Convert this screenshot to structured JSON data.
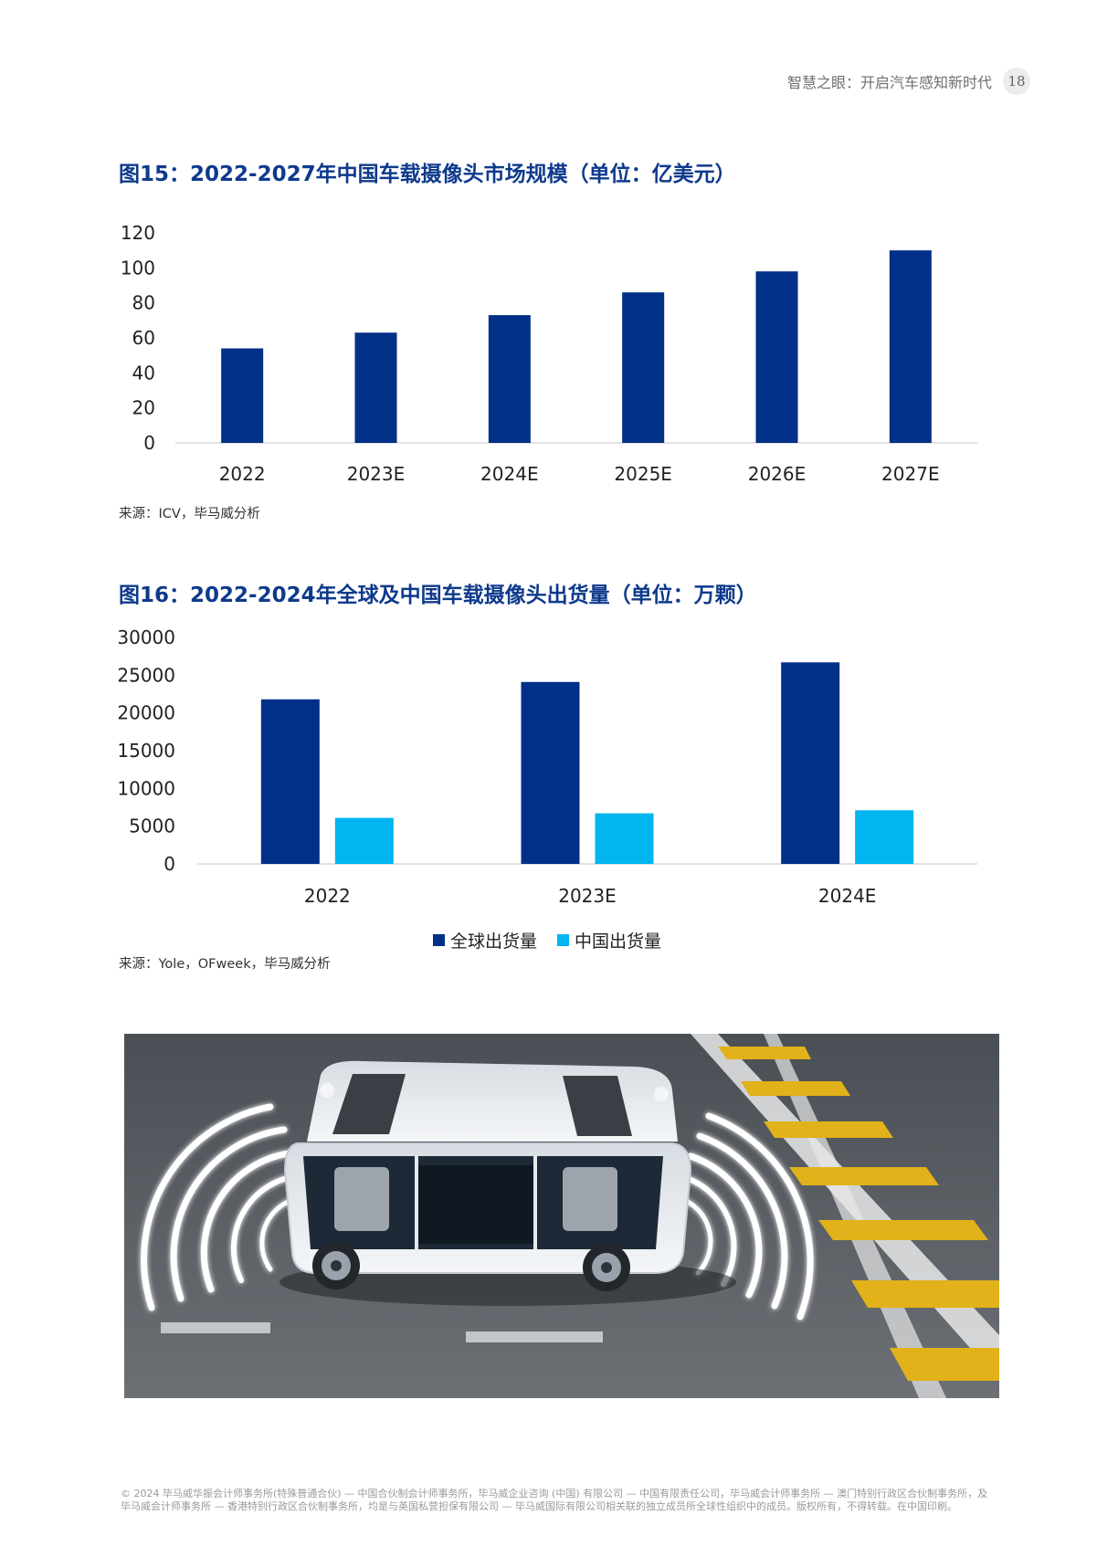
{
  "header": {
    "title": "智慧之眼：开启汽车感知新时代",
    "page_number": "18"
  },
  "figure15": {
    "title": "图15：2022-2027年中国车载摄像头市场规模（单位：亿美元）",
    "source": "来源：ICV，毕马威分析"
  },
  "figure16": {
    "title": "图16：2022-2024年全球及中国车载摄像头出货量（单位：万颗）",
    "source": "来源：Yole，OFweek，毕马威分析"
  },
  "chart_data": [
    {
      "type": "bar",
      "categories": [
        "2022",
        "2023E",
        "2024E",
        "2025E",
        "2026E",
        "2027E"
      ],
      "series": [
        {
          "values": [
            54,
            63,
            73,
            86,
            98,
            110
          ],
          "color": "#003087"
        }
      ],
      "ylim": [
        0,
        120
      ],
      "yticks": [
        "0",
        "20",
        "40",
        "60",
        "80",
        "100",
        "120"
      ],
      "grid": false
    },
    {
      "type": "bar",
      "categories": [
        "2022",
        "2023E",
        "2024E"
      ],
      "series": [
        {
          "name": "全球出货量",
          "values": [
            21800,
            24100,
            26700
          ],
          "color": "#003087"
        },
        {
          "name": "中国出货量",
          "values": [
            6100,
            6700,
            7100
          ],
          "color": "#00B5F0"
        }
      ],
      "ylim": [
        0,
        30000
      ],
      "yticks": [
        "0",
        "5000",
        "10000",
        "15000",
        "20000",
        "25000",
        "30000"
      ],
      "legend": "bottom",
      "grid": false
    }
  ],
  "footer": {
    "text": "© 2024 毕马威华振会计师事务所(特殊普通合伙) — 中国合伙制会计师事务所，毕马威企业咨询 (中国) 有限公司 — 中国有限责任公司，毕马威会计师事务所 — 澳门特别行政区合伙制事务所，及毕马威会计师事务所 — 香港特别行政区合伙制事务所，均是与英国私营担保有限公司 — 毕马威国际有限公司相关联的独立成员所全球性组织中的成员。版权所有，不得转载。在中国印刷。"
  }
}
